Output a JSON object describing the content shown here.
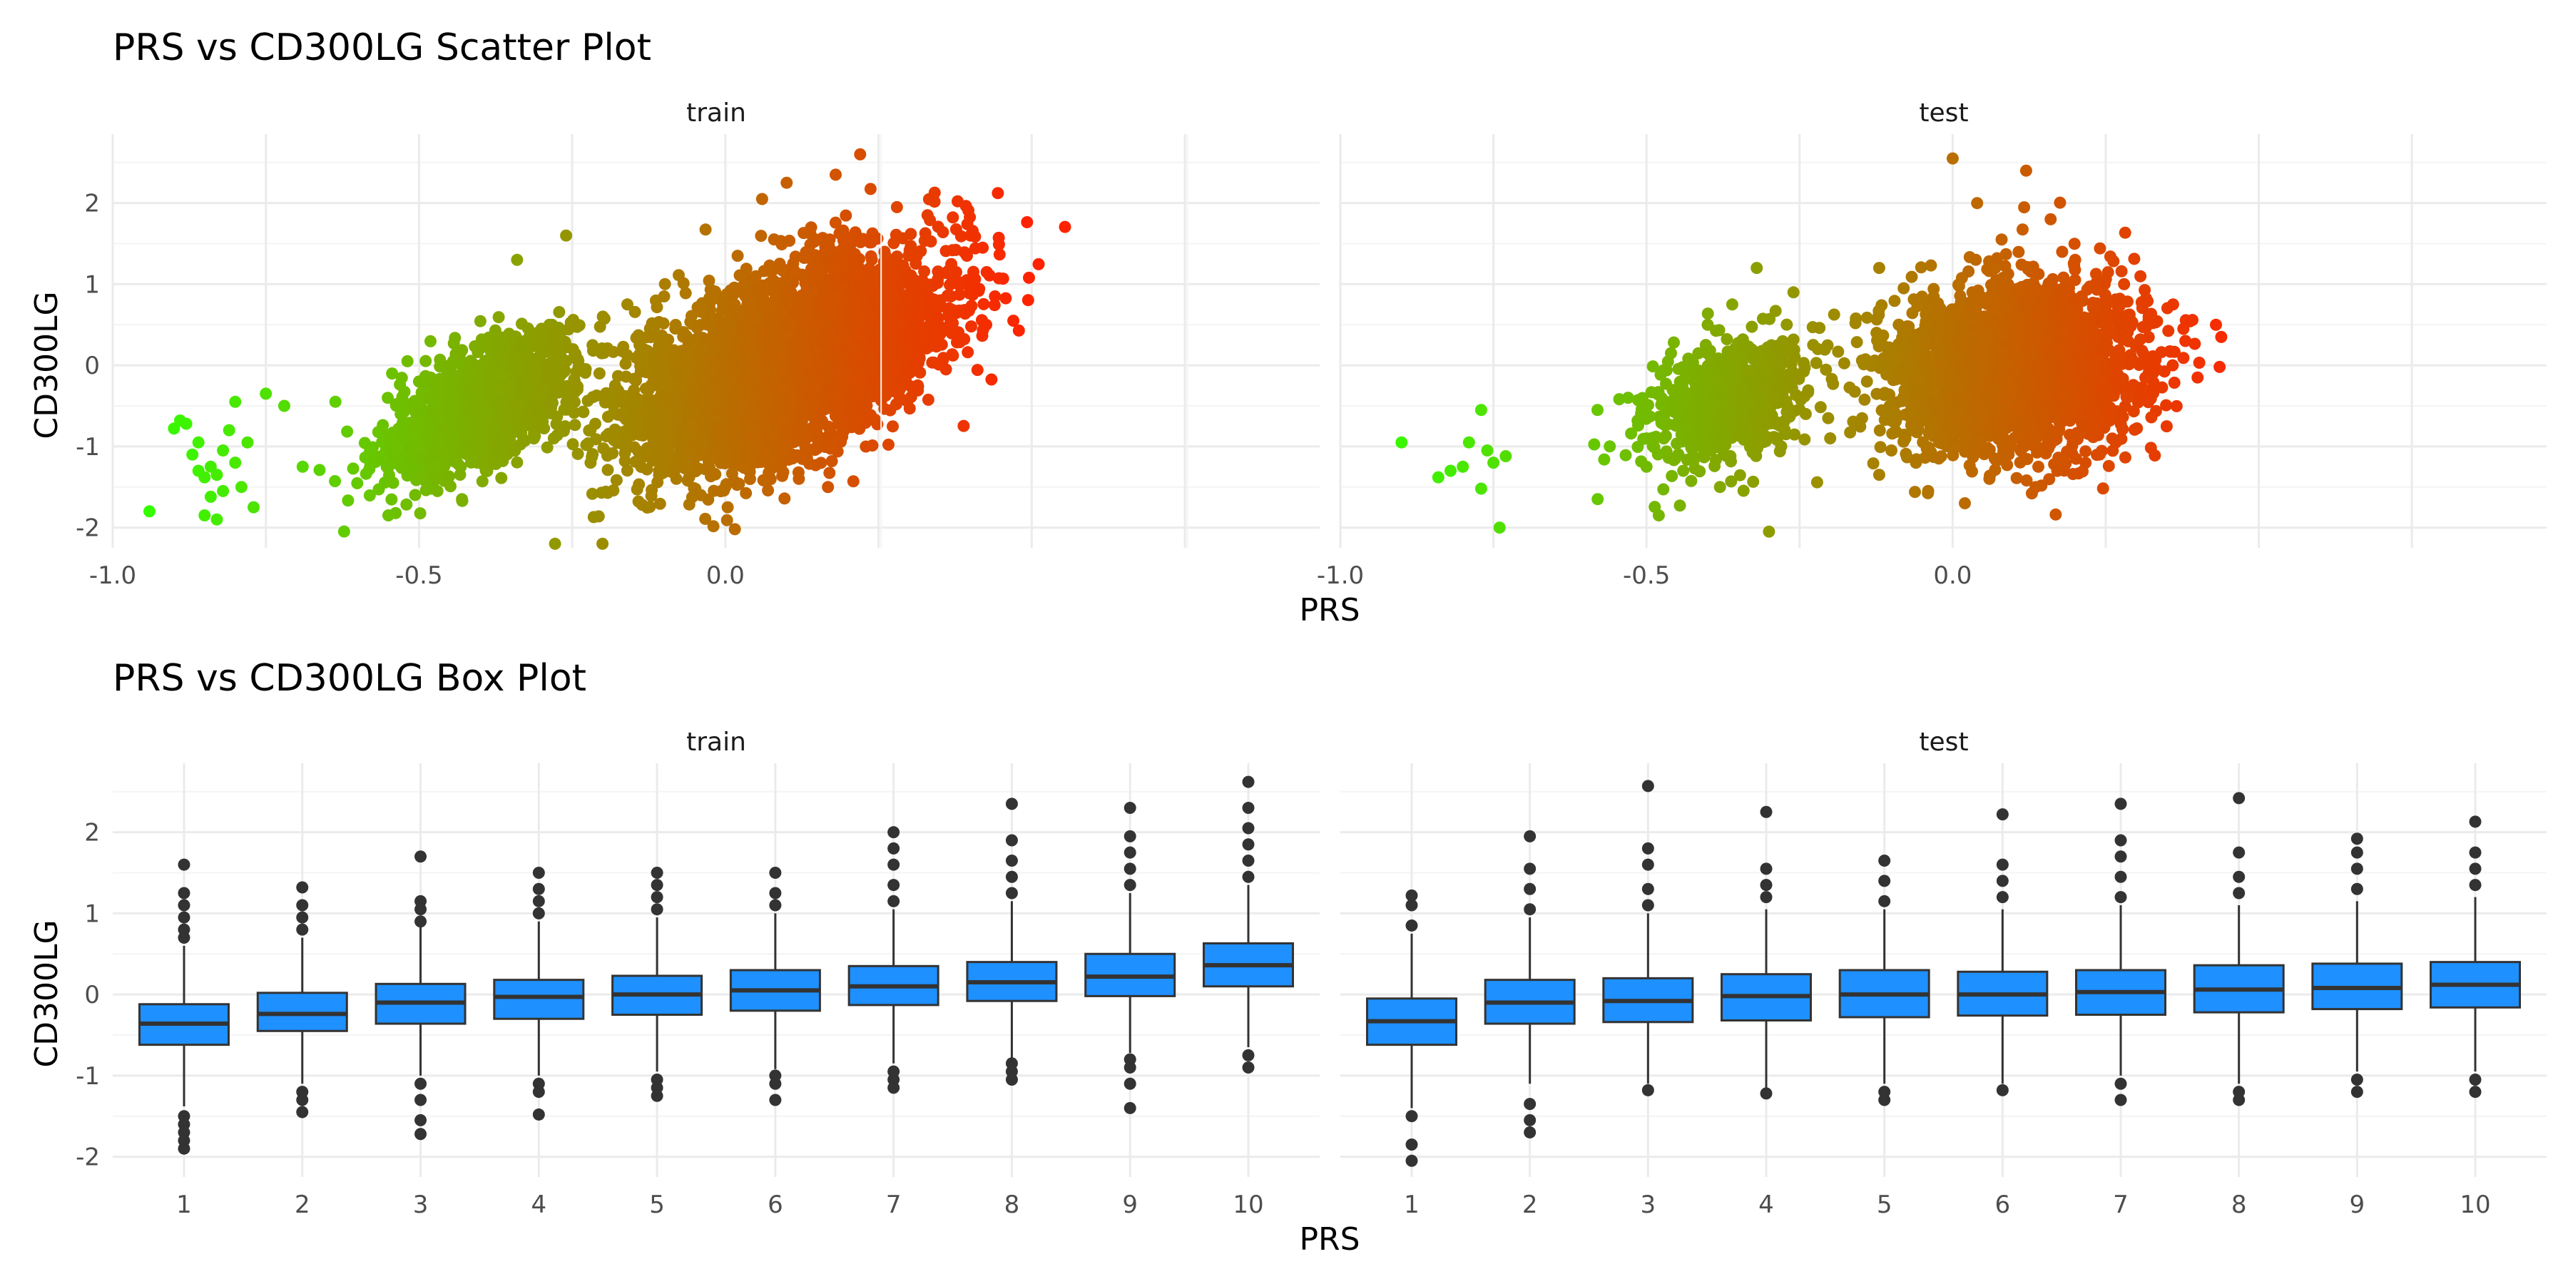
{
  "chart_data": [
    {
      "type": "scatter",
      "title": "PRS vs CD300LG Scatter Plot",
      "xlabel": "PRS",
      "ylabel": "CD300LG",
      "xlim": [
        -1.0,
        0.97
      ],
      "ylim": [
        -2.25,
        2.85
      ],
      "x_ticks": [
        -1.0,
        -0.5,
        0.0
      ],
      "x_tick_labels": [
        "-1.0",
        "-0.5",
        "0.0"
      ],
      "y_ticks": [
        -2,
        -1,
        0,
        1,
        2
      ],
      "y_tick_labels": [
        "-2",
        "-1",
        "0",
        "1",
        "2"
      ],
      "grid": true,
      "color_scale": {
        "low": "#33ff00",
        "high": "#ff2200",
        "mapped_to": "PRS"
      },
      "panels": [
        {
          "name": "train",
          "points": [
            [
              -0.94,
              -1.8
            ],
            [
              -0.89,
              -0.68
            ],
            [
              -0.9,
              -0.78
            ],
            [
              -0.88,
              -0.72
            ],
            [
              -0.87,
              -1.1
            ],
            [
              -0.86,
              -0.95
            ],
            [
              -0.85,
              -1.38
            ],
            [
              -0.84,
              -1.62
            ],
            [
              -0.85,
              -1.85
            ],
            [
              -0.83,
              -1.9
            ],
            [
              -0.83,
              -1.35
            ],
            [
              -0.82,
              -1.05
            ],
            [
              -0.81,
              -0.8
            ],
            [
              -0.8,
              -0.45
            ],
            [
              -0.8,
              -1.2
            ],
            [
              -0.79,
              -1.5
            ],
            [
              -0.78,
              -0.95
            ],
            [
              -0.77,
              -1.75
            ],
            [
              -0.75,
              -0.35
            ],
            [
              -0.72,
              -0.5
            ],
            [
              -0.69,
              -1.25
            ],
            [
              -0.86,
              -1.3
            ],
            [
              -0.84,
              -1.25
            ],
            [
              -0.82,
              -1.55
            ],
            [
              -0.58,
              -1.05
            ],
            [
              -0.55,
              -1.85
            ],
            [
              -0.53,
              -0.6
            ],
            [
              -0.52,
              -1.3
            ],
            [
              -0.5,
              -0.2
            ],
            [
              -0.47,
              -1.55
            ],
            [
              -0.45,
              -0.9
            ],
            [
              -0.43,
              -1.65
            ],
            [
              -0.42,
              -0.05
            ],
            [
              -0.4,
              -0.55
            ],
            [
              -0.38,
              -1.2
            ],
            [
              -0.36,
              0.15
            ],
            [
              -0.34,
              1.3
            ],
            [
              -0.32,
              -0.35
            ],
            [
              -0.3,
              0.45
            ],
            [
              -0.28,
              -0.9
            ],
            [
              -0.26,
              1.6
            ],
            [
              -0.24,
              0.05
            ],
            [
              -0.22,
              -1.2
            ],
            [
              -0.2,
              0.6
            ],
            [
              -0.18,
              -0.25
            ],
            [
              -0.16,
              0.75
            ],
            [
              -0.14,
              0.25
            ],
            [
              -0.12,
              -0.45
            ],
            [
              -0.1,
              0.85
            ],
            [
              -0.1,
              -0.95
            ],
            [
              -0.08,
              -1.4
            ],
            [
              -0.06,
              0.3
            ],
            [
              -0.04,
              -1.6
            ],
            [
              -0.02,
              0.9
            ],
            [
              0.0,
              -1.5
            ],
            [
              0.02,
              1.35
            ],
            [
              0.04,
              -1.1
            ],
            [
              0.06,
              2.05
            ],
            [
              0.08,
              -0.95
            ],
            [
              0.1,
              2.25
            ],
            [
              0.12,
              -0.75
            ],
            [
              0.14,
              1.7
            ],
            [
              0.16,
              -0.55
            ],
            [
              0.18,
              2.35
            ],
            [
              0.2,
              -0.1
            ],
            [
              0.22,
              2.6
            ],
            [
              0.24,
              1.15
            ],
            [
              0.26,
              0.0
            ],
            [
              0.28,
              1.95
            ],
            [
              0.3,
              0.6
            ],
            [
              0.33,
              1.85
            ],
            [
              0.36,
              -0.05
            ],
            [
              0.38,
              1.0
            ],
            [
              0.4,
              1.6
            ],
            [
              0.42,
              1.45
            ],
            [
              0.44,
              0.85
            ],
            [
              0.47,
              0.55
            ],
            [
              0.12,
              -1.4
            ]
          ],
          "clusters": [
            {
              "cx": -0.4,
              "cy": -0.5,
              "sx": 0.075,
              "sy": 0.42,
              "r": 0.62,
              "n": 1600
            },
            {
              "cx": 0.1,
              "cy": 0.05,
              "sx": 0.12,
              "sy": 0.62,
              "r": 0.55,
              "n": 4600
            }
          ]
        },
        {
          "name": "test",
          "points": [
            [
              -0.9,
              -0.95
            ],
            [
              -0.84,
              -1.38
            ],
            [
              -0.82,
              -1.3
            ],
            [
              -0.8,
              -1.25
            ],
            [
              -0.79,
              -0.95
            ],
            [
              -0.77,
              -0.55
            ],
            [
              -0.77,
              -1.52
            ],
            [
              -0.76,
              -1.05
            ],
            [
              -0.75,
              -1.2
            ],
            [
              -0.74,
              -2.0
            ],
            [
              -0.73,
              -1.12
            ],
            [
              -0.58,
              -0.55
            ],
            [
              -0.56,
              -1.0
            ],
            [
              -0.53,
              -0.4
            ],
            [
              -0.5,
              -1.25
            ],
            [
              -0.48,
              -1.85
            ],
            [
              -0.46,
              0.15
            ],
            [
              -0.44,
              -1.3
            ],
            [
              -0.4,
              0.5
            ],
            [
              -0.38,
              -1.5
            ],
            [
              -0.36,
              0.75
            ],
            [
              -0.33,
              -0.45
            ],
            [
              -0.32,
              1.2
            ],
            [
              -0.3,
              -2.05
            ],
            [
              -0.28,
              -1.0
            ],
            [
              -0.26,
              0.9
            ],
            [
              -0.24,
              -0.6
            ],
            [
              -0.22,
              0.2
            ],
            [
              -0.2,
              -0.9
            ],
            [
              -0.14,
              -0.2
            ],
            [
              -0.12,
              -1.35
            ],
            [
              -0.12,
              1.2
            ],
            [
              -0.1,
              -1.05
            ],
            [
              -0.08,
              0.95
            ],
            [
              -0.06,
              -1.2
            ],
            [
              -0.04,
              -1.55
            ],
            [
              -0.02,
              0.7
            ],
            [
              0.0,
              2.55
            ],
            [
              0.02,
              -1.7
            ],
            [
              0.04,
              2.0
            ],
            [
              0.06,
              -1.4
            ],
            [
              0.08,
              1.55
            ],
            [
              0.12,
              2.4
            ],
            [
              0.14,
              -1.25
            ],
            [
              0.16,
              1.8
            ],
            [
              0.2,
              1.3
            ],
            [
              0.24,
              -1.1
            ],
            [
              0.28,
              1.0
            ],
            [
              0.32,
              0.6
            ],
            [
              0.36,
              0.75
            ],
            [
              0.38,
              0.3
            ],
            [
              0.4,
              -0.15
            ],
            [
              0.43,
              0.5
            ]
          ],
          "clusters": [
            {
              "cx": -0.37,
              "cy": -0.45,
              "sx": 0.065,
              "sy": 0.38,
              "r": 0.3,
              "n": 650
            },
            {
              "cx": 0.1,
              "cy": -0.05,
              "sx": 0.1,
              "sy": 0.5,
              "r": 0.1,
              "n": 2600
            }
          ]
        }
      ]
    },
    {
      "type": "box",
      "title": "PRS vs CD300LG Box Plot",
      "xlabel": "PRS",
      "ylabel": "CD300LG",
      "categories": [
        "1",
        "2",
        "3",
        "4",
        "5",
        "6",
        "7",
        "8",
        "9",
        "10"
      ],
      "ylim": [
        -2.25,
        2.85
      ],
      "y_ticks": [
        -2,
        -1,
        0,
        1,
        2
      ],
      "y_tick_labels": [
        "-2",
        "-1",
        "0",
        "1",
        "2"
      ],
      "grid": true,
      "box_fill": "#1e90ff",
      "box_stroke": "#333333",
      "panels": [
        {
          "name": "train",
          "boxes": [
            {
              "q1": -0.62,
              "median": -0.36,
              "q3": -0.12,
              "lower": -1.38,
              "upper": 0.6,
              "outliers_low": [
                -1.5,
                -1.6,
                -1.7,
                -1.8,
                -1.9
              ],
              "outliers_high": [
                0.7,
                0.8,
                0.95,
                1.1,
                1.25,
                1.6
              ]
            },
            {
              "q1": -0.45,
              "median": -0.24,
              "q3": 0.02,
              "lower": -1.1,
              "upper": 0.7,
              "outliers_low": [
                -1.2,
                -1.3,
                -1.45
              ],
              "outliers_high": [
                0.8,
                0.95,
                1.1,
                1.32
              ]
            },
            {
              "q1": -0.36,
              "median": -0.1,
              "q3": 0.13,
              "lower": -1.0,
              "upper": 0.85,
              "outliers_low": [
                -1.1,
                -1.3,
                -1.55,
                -1.72
              ],
              "outliers_high": [
                0.9,
                1.05,
                1.15,
                1.7
              ]
            },
            {
              "q1": -0.3,
              "median": -0.03,
              "q3": 0.18,
              "lower": -1.0,
              "upper": 0.9,
              "outliers_low": [
                -1.1,
                -1.2,
                -1.48
              ],
              "outliers_high": [
                1.0,
                1.15,
                1.3,
                1.5
              ]
            },
            {
              "q1": -0.25,
              "median": 0.0,
              "q3": 0.23,
              "lower": -0.95,
              "upper": 0.95,
              "outliers_low": [
                -1.05,
                -1.15,
                -1.25
              ],
              "outliers_high": [
                1.05,
                1.2,
                1.35,
                1.5
              ]
            },
            {
              "q1": -0.2,
              "median": 0.05,
              "q3": 0.3,
              "lower": -0.92,
              "upper": 1.0,
              "outliers_low": [
                -1.0,
                -1.1,
                -1.3
              ],
              "outliers_high": [
                1.1,
                1.25,
                1.5
              ]
            },
            {
              "q1": -0.13,
              "median": 0.1,
              "q3": 0.35,
              "lower": -0.85,
              "upper": 1.05,
              "outliers_low": [
                -0.95,
                -1.05,
                -1.15
              ],
              "outliers_high": [
                1.15,
                1.35,
                1.6,
                1.8,
                2.0
              ]
            },
            {
              "q1": -0.08,
              "median": 0.15,
              "q3": 0.4,
              "lower": -0.78,
              "upper": 1.15,
              "outliers_low": [
                -0.85,
                -0.95,
                -1.05
              ],
              "outliers_high": [
                1.25,
                1.45,
                1.65,
                1.9,
                2.35
              ]
            },
            {
              "q1": -0.02,
              "median": 0.22,
              "q3": 0.5,
              "lower": -0.72,
              "upper": 1.25,
              "outliers_low": [
                -0.8,
                -0.9,
                -1.1,
                -1.4
              ],
              "outliers_high": [
                1.35,
                1.55,
                1.75,
                1.95,
                2.3
              ]
            },
            {
              "q1": 0.1,
              "median": 0.36,
              "q3": 0.63,
              "lower": -0.65,
              "upper": 1.35,
              "outliers_low": [
                -0.75,
                -0.9
              ],
              "outliers_high": [
                1.45,
                1.65,
                1.85,
                2.05,
                2.3,
                2.62
              ]
            }
          ]
        },
        {
          "name": "test",
          "boxes": [
            {
              "q1": -0.62,
              "median": -0.33,
              "q3": -0.05,
              "lower": -1.4,
              "upper": 0.75,
              "outliers_low": [
                -1.5,
                -1.85,
                -2.05
              ],
              "outliers_high": [
                0.85,
                1.1,
                1.22
              ]
            },
            {
              "q1": -0.36,
              "median": -0.1,
              "q3": 0.18,
              "lower": -1.1,
              "upper": 0.95,
              "outliers_low": [
                -1.35,
                -1.55,
                -1.7
              ],
              "outliers_high": [
                1.05,
                1.3,
                1.55,
                1.95
              ]
            },
            {
              "q1": -0.34,
              "median": -0.08,
              "q3": 0.2,
              "lower": -1.1,
              "upper": 1.0,
              "outliers_low": [
                -1.18
              ],
              "outliers_high": [
                1.1,
                1.3,
                1.6,
                1.8,
                2.57
              ]
            },
            {
              "q1": -0.32,
              "median": -0.02,
              "q3": 0.25,
              "lower": -1.15,
              "upper": 1.05,
              "outliers_low": [
                -1.22
              ],
              "outliers_high": [
                1.2,
                1.35,
                1.55,
                2.25
              ]
            },
            {
              "q1": -0.28,
              "median": 0.0,
              "q3": 0.3,
              "lower": -1.1,
              "upper": 1.05,
              "outliers_low": [
                -1.2,
                -1.3
              ],
              "outliers_high": [
                1.15,
                1.4,
                1.65
              ]
            },
            {
              "q1": -0.26,
              "median": 0.0,
              "q3": 0.28,
              "lower": -1.1,
              "upper": 1.05,
              "outliers_low": [
                -1.18
              ],
              "outliers_high": [
                1.2,
                1.4,
                1.6,
                2.22
              ]
            },
            {
              "q1": -0.25,
              "median": 0.03,
              "q3": 0.3,
              "lower": -1.0,
              "upper": 1.1,
              "outliers_low": [
                -1.1,
                -1.3
              ],
              "outliers_high": [
                1.2,
                1.45,
                1.7,
                1.9,
                2.35
              ]
            },
            {
              "q1": -0.22,
              "median": 0.06,
              "q3": 0.36,
              "lower": -1.1,
              "upper": 1.1,
              "outliers_low": [
                -1.2,
                -1.3
              ],
              "outliers_high": [
                1.25,
                1.45,
                1.75,
                2.42
              ]
            },
            {
              "q1": -0.18,
              "median": 0.08,
              "q3": 0.38,
              "lower": -0.95,
              "upper": 1.15,
              "outliers_low": [
                -1.05,
                -1.2
              ],
              "outliers_high": [
                1.3,
                1.55,
                1.75,
                1.92
              ]
            },
            {
              "q1": -0.16,
              "median": 0.12,
              "q3": 0.4,
              "lower": -0.95,
              "upper": 1.2,
              "outliers_low": [
                -1.05,
                -1.2
              ],
              "outliers_high": [
                1.35,
                1.55,
                1.75,
                2.13
              ]
            }
          ]
        }
      ]
    }
  ]
}
